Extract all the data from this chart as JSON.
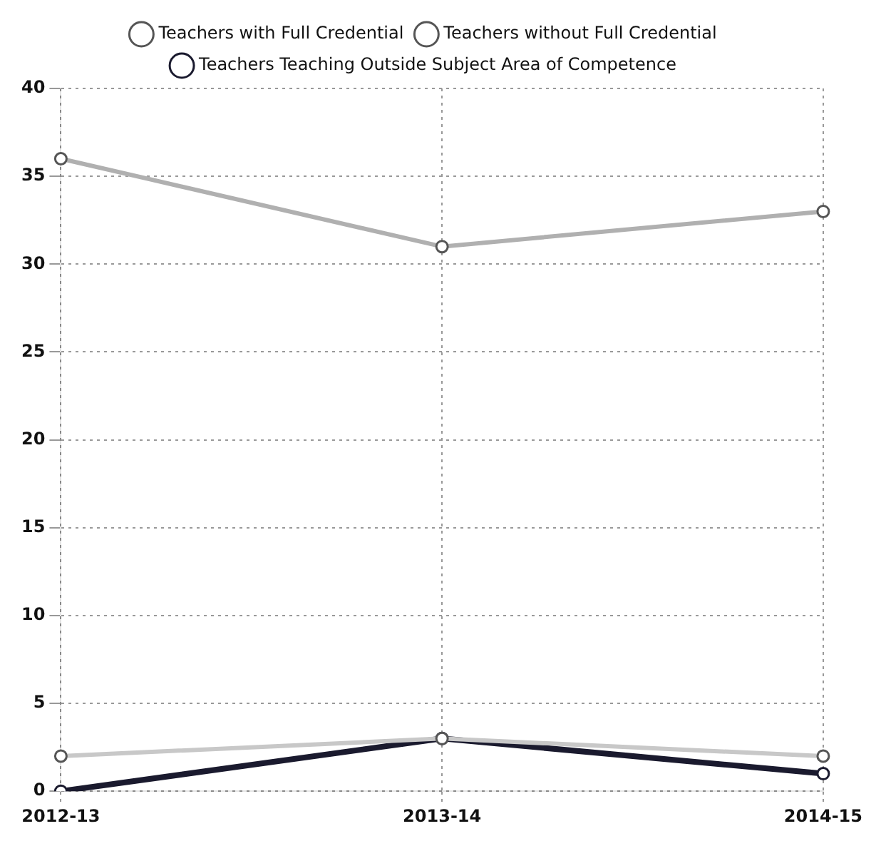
{
  "chart_data": {
    "type": "line",
    "categories": [
      "2012-13",
      "2013-14",
      "2014-15"
    ],
    "series": [
      {
        "name": "Teachers with Full Credential",
        "color": "#b0b0b0",
        "values": [
          36,
          31,
          33
        ]
      },
      {
        "name": "Teachers without Full Credential",
        "color": "#c8c8c8",
        "values": [
          2,
          3,
          2
        ]
      },
      {
        "name": "Teachers Teaching Outside Subject Area of Competence",
        "color": "#1a1a2e",
        "values": [
          0,
          3,
          1
        ]
      }
    ],
    "ylim": [
      0,
      40
    ],
    "yticks": [
      0,
      5,
      10,
      15,
      20,
      25,
      30,
      35,
      40
    ],
    "grid": true,
    "legend": "top",
    "marker": "circle",
    "line_style": "solid"
  }
}
